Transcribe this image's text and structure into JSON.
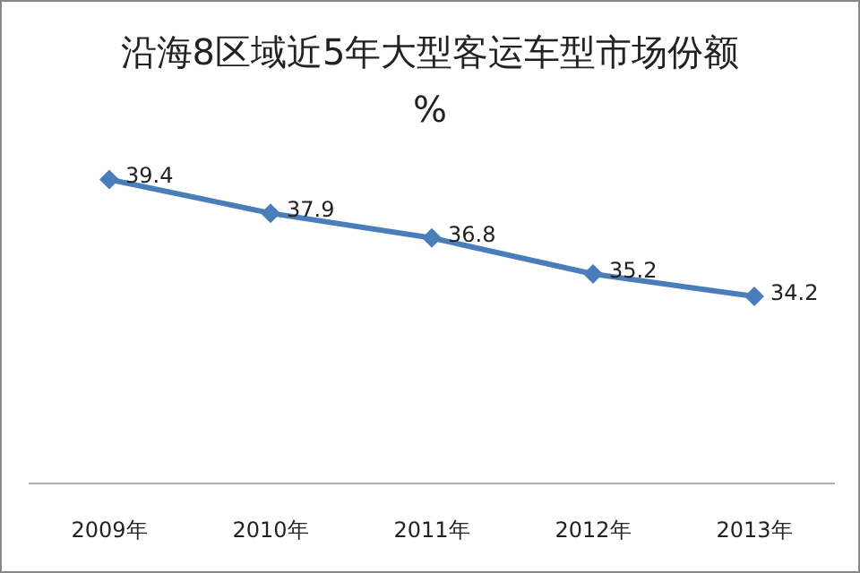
{
  "chart_data": {
    "type": "line",
    "title": "沿海8区域近5年大型客运车型市场份额%",
    "categories": [
      "2009年",
      "2010年",
      "2011年",
      "2012年",
      "2013年"
    ],
    "series": [
      {
        "color": "#4a7ebb",
        "values": [
          39.4,
          37.9,
          36.8,
          35.2,
          34.2
        ]
      }
    ],
    "tick_labels": "x",
    "marker": "diamond",
    "line_style": "solid",
    "data_labels": true
  }
}
